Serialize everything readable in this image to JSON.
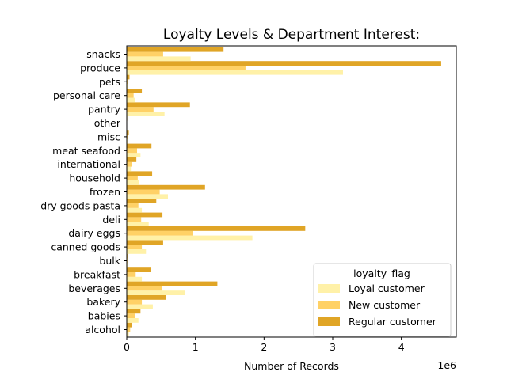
{
  "chart_data": {
    "type": "bar",
    "orientation": "horizontal",
    "title": "Loyalty Levels & Department Interest:",
    "xlabel": "Number of Records",
    "ylabel": "",
    "x_scale_label": "1e6",
    "xlim": [
      0,
      4.8
    ],
    "x_ticks": [
      0,
      1,
      2,
      3,
      4
    ],
    "x_tick_labels": [
      "0",
      "1",
      "2",
      "3",
      "4"
    ],
    "categories": [
      "alcohol",
      "babies",
      "bakery",
      "beverages",
      "breakfast",
      "bulk",
      "canned goods",
      "dairy eggs",
      "deli",
      "dry goods pasta",
      "frozen",
      "household",
      "international",
      "meat seafood",
      "misc",
      "other",
      "pantry",
      "personal care",
      "pets",
      "produce",
      "snacks"
    ],
    "series": [
      {
        "name": "Loyal customer",
        "color": "#fff1a8",
        "values": [
          0.03,
          0.17,
          0.38,
          0.85,
          0.22,
          0.01,
          0.28,
          1.83,
          0.32,
          0.22,
          0.6,
          0.18,
          0.06,
          0.2,
          0.01,
          0.003,
          0.55,
          0.12,
          0.02,
          3.15,
          0.93
        ]
      },
      {
        "name": "New customer",
        "color": "#ffd166",
        "values": [
          0.05,
          0.12,
          0.22,
          0.51,
          0.13,
          0.01,
          0.22,
          0.96,
          0.21,
          0.17,
          0.48,
          0.16,
          0.07,
          0.15,
          0.02,
          0.004,
          0.39,
          0.1,
          0.02,
          1.73,
          0.53
        ]
      },
      {
        "name": "Regular customer",
        "color": "#e0a526",
        "values": [
          0.08,
          0.2,
          0.57,
          1.32,
          0.35,
          0.01,
          0.53,
          2.6,
          0.52,
          0.43,
          1.14,
          0.37,
          0.14,
          0.36,
          0.03,
          0.007,
          0.92,
          0.22,
          0.04,
          4.58,
          1.41
        ]
      }
    ],
    "legend": {
      "title": "loyalty_flag",
      "position": "lower-right"
    },
    "grid": false
  }
}
